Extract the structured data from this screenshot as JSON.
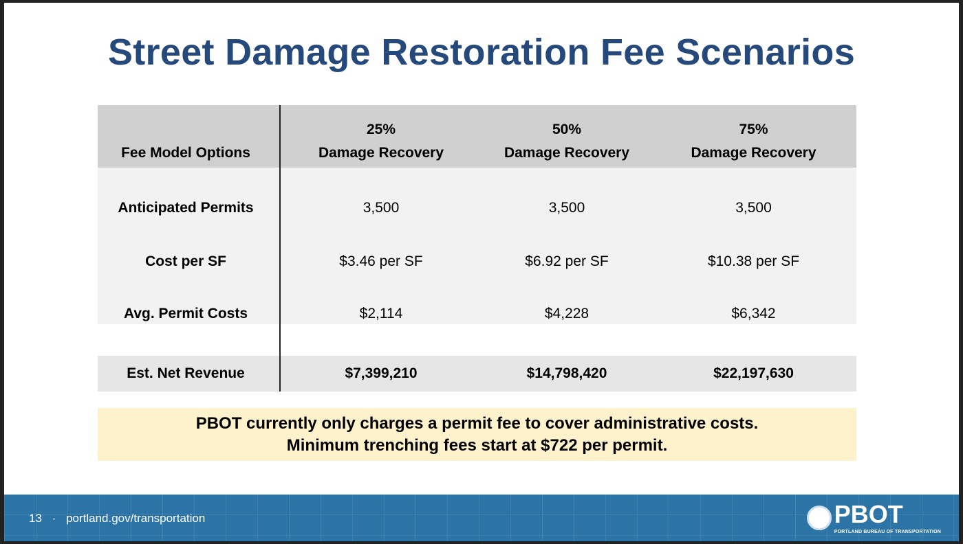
{
  "title": "Street Damage Restoration Fee Scenarios",
  "table": {
    "header": {
      "label": "Fee Model Options",
      "columns": [
        {
          "pct": "25%",
          "label": "Damage Recovery"
        },
        {
          "pct": "50%",
          "label": "Damage Recovery"
        },
        {
          "pct": "75%",
          "label": "Damage Recovery"
        }
      ]
    },
    "rows": [
      {
        "label": "Anticipated Permits",
        "values": [
          "3,500",
          "3,500",
          "3,500"
        ]
      },
      {
        "label": "Cost per SF",
        "values": [
          "$3.46 per SF",
          "$6.92 per SF",
          "$10.38 per SF"
        ]
      },
      {
        "label": "Avg. Permit Costs",
        "values": [
          "$2,114",
          "$4,228",
          "$6,342"
        ]
      }
    ],
    "total": {
      "label": "Est. Net Revenue",
      "values": [
        "$7,399,210",
        "$14,798,420",
        "$22,197,630"
      ]
    }
  },
  "callout": {
    "line1": "PBOT currently only charges a permit fee to cover administrative costs.",
    "line2": "Minimum trenching fees start at $722 per permit."
  },
  "footer": {
    "page": "13",
    "separator": "·",
    "url": "portland.gov/transportation",
    "logo": "PBOT",
    "logo_sub": "PORTLAND BUREAU OF TRANSPORTATION"
  },
  "colors": {
    "title": "#24497a",
    "footer": "#2c74a6",
    "callout": "#fdf2cc",
    "header": "#d0d0d0"
  }
}
